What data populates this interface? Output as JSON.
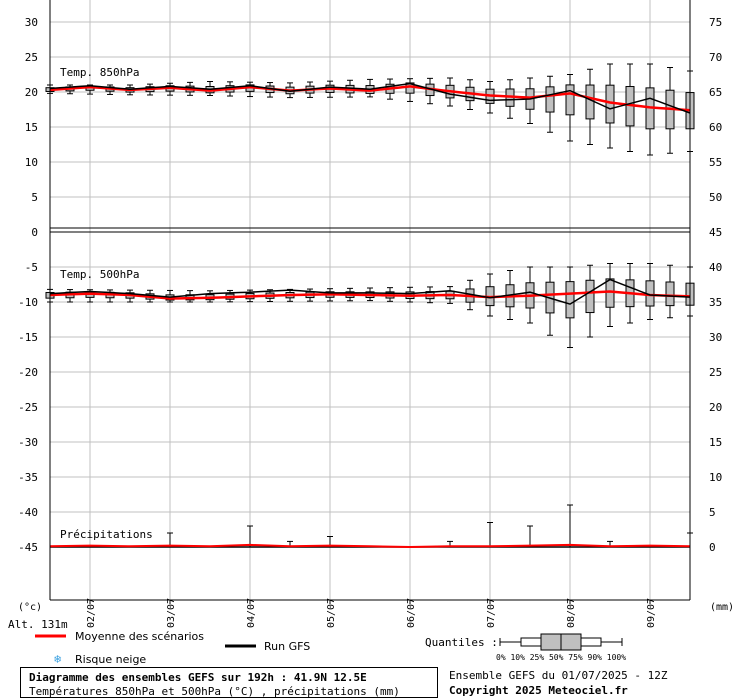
{
  "chart_data": [
    {
      "type": "line",
      "panel": "temp850",
      "label": "Temp. 850hPa",
      "x_dates": [
        "02/07",
        "03/07",
        "04/07",
        "05/07",
        "06/07",
        "07/07",
        "08/07",
        "09/07"
      ],
      "left_axis": {
        "ticks": [
          5,
          10,
          15,
          20,
          25,
          30
        ],
        "range": [
          0,
          32.5
        ]
      },
      "right_axis": {
        "ticks": [
          50,
          55,
          60,
          65,
          70,
          75
        ],
        "range": [
          45,
          77.5
        ]
      },
      "x_range_hours": [
        0,
        192
      ],
      "series": [
        {
          "name": "Moyenne des scénarios",
          "color": "#ff0000",
          "x": [
            0,
            12,
            24,
            36,
            48,
            60,
            72,
            84,
            96,
            108,
            120,
            132,
            144,
            156,
            168,
            180,
            192
          ],
          "y": [
            20.3,
            20.7,
            20.3,
            20.6,
            20.2,
            20.7,
            20.2,
            20.5,
            20.2,
            20.8,
            20.1,
            19.5,
            19.2,
            19.8,
            18.5,
            17.8,
            17.4
          ]
        },
        {
          "name": "Run GFS",
          "color": "#000000",
          "x": [
            0,
            12,
            24,
            36,
            48,
            60,
            72,
            84,
            96,
            108,
            120,
            132,
            144,
            156,
            168,
            180,
            192
          ],
          "y": [
            20.5,
            20.9,
            20.4,
            20.8,
            20.4,
            20.9,
            20.1,
            20.7,
            20.4,
            21.2,
            19.7,
            18.8,
            19.0,
            20.2,
            17.6,
            19.1,
            17.0
          ]
        }
      ],
      "spread": [
        {
          "x": 0,
          "min": 19.8,
          "max": 21.0
        },
        {
          "x": 24,
          "min": 19.6,
          "max": 21.0
        },
        {
          "x": 48,
          "min": 19.5,
          "max": 21.5
        },
        {
          "x": 72,
          "min": 19.2,
          "max": 21.3
        },
        {
          "x": 96,
          "min": 19.3,
          "max": 21.8
        },
        {
          "x": 120,
          "min": 18.0,
          "max": 22.0
        },
        {
          "x": 132,
          "min": 17.0,
          "max": 21.5
        },
        {
          "x": 144,
          "min": 15.5,
          "max": 22.0
        },
        {
          "x": 156,
          "min": 13.0,
          "max": 22.5
        },
        {
          "x": 168,
          "min": 12.0,
          "max": 24.0
        },
        {
          "x": 180,
          "min": 11.0,
          "max": 24.0
        },
        {
          "x": 192,
          "min": 11.5,
          "max": 23.0
        }
      ]
    },
    {
      "type": "line",
      "panel": "temp500",
      "label": "Temp. 500hPa",
      "left_axis": {
        "ticks": [
          -5,
          -10,
          -15,
          -20,
          -25,
          -30,
          -35,
          -40,
          -45
        ],
        "range": [
          -45,
          -2.5
        ]
      },
      "right_axis": {
        "ticks": [
          45,
          40,
          35,
          30,
          25,
          20,
          15,
          10,
          5,
          0
        ],
        "range": [
          0,
          42.5
        ]
      },
      "series": [
        {
          "name": "Moyenne des scénarios",
          "color": "#ff0000",
          "x": [
            0,
            12,
            24,
            36,
            48,
            60,
            72,
            84,
            96,
            108,
            120,
            132,
            144,
            156,
            168,
            180,
            192
          ],
          "y": [
            -9.0,
            -8.8,
            -9.0,
            -9.5,
            -9.4,
            -9.2,
            -9.0,
            -8.9,
            -9.0,
            -9.1,
            -9.0,
            -9.3,
            -9.1,
            -8.8,
            -8.5,
            -9.0,
            -9.2
          ]
        },
        {
          "name": "Run GFS",
          "color": "#000000",
          "x": [
            0,
            12,
            24,
            36,
            48,
            60,
            72,
            84,
            96,
            108,
            120,
            132,
            144,
            156,
            168,
            180,
            192
          ],
          "y": [
            -8.8,
            -8.5,
            -8.8,
            -9.3,
            -8.8,
            -8.6,
            -8.3,
            -8.7,
            -8.7,
            -8.8,
            -8.4,
            -9.4,
            -8.6,
            -10.3,
            -6.8,
            -9.0,
            -9.3
          ]
        }
      ],
      "spread": [
        {
          "x": 0,
          "min": -10.0,
          "max": -8.2
        },
        {
          "x": 48,
          "min": -10.0,
          "max": -8.4
        },
        {
          "x": 96,
          "min": -9.8,
          "max": -8.0
        },
        {
          "x": 120,
          "min": -10.2,
          "max": -7.8
        },
        {
          "x": 132,
          "min": -12.0,
          "max": -6.0
        },
        {
          "x": 144,
          "min": -13.0,
          "max": -5.0
        },
        {
          "x": 156,
          "min": -16.5,
          "max": -5.0
        },
        {
          "x": 168,
          "min": -13.5,
          "max": -4.5
        },
        {
          "x": 180,
          "min": -12.5,
          "max": -4.5
        },
        {
          "x": 192,
          "min": -12.0,
          "max": -5.0
        }
      ]
    },
    {
      "type": "bar",
      "panel": "precip",
      "label": "Précipitations",
      "unit": "mm",
      "x": [
        0,
        12,
        24,
        36,
        48,
        60,
        72,
        84,
        96,
        108,
        120,
        132,
        144,
        156,
        168,
        180,
        192
      ],
      "mean": [
        0.1,
        0.2,
        0.1,
        0.2,
        0.1,
        0.3,
        0.1,
        0.2,
        0.1,
        0.0,
        0.1,
        0.1,
        0.2,
        0.3,
        0.1,
        0.2,
        0.1
      ],
      "max": [
        0.5,
        0.4,
        0.3,
        2.0,
        0.3,
        3.0,
        0.8,
        1.5,
        0.6,
        0.5,
        0.8,
        3.5,
        3.0,
        6.0,
        0.8,
        0.5,
        2.0
      ]
    }
  ],
  "axis_units": {
    "left": "(°c)",
    "right": "(mm)"
  },
  "altitude": "Alt. 131m",
  "legend": {
    "mean": "Moyenne des scénarios",
    "run": "Run GFS",
    "snow": "Risque neige",
    "quantiles_label": "Quantiles :",
    "quantiles_ticks": "0%  10% 25% 50% 75% 90% 100%"
  },
  "footer": {
    "title": "Diagramme des ensembles GEFS sur 192h : 41.9N 12.5E",
    "subtitle": "Températures 850hPa et 500hPa (°C) , précipitations (mm)",
    "run_info": "Ensemble GEFS du 01/07/2025 - 12Z",
    "copyright": "Copyright 2025 Meteociel.fr"
  },
  "colors": {
    "mean": "#ff0000",
    "run": "#000000",
    "box": "#c0c0c0",
    "grid": "#c0c0c0",
    "snow": "#3aa0e0"
  }
}
